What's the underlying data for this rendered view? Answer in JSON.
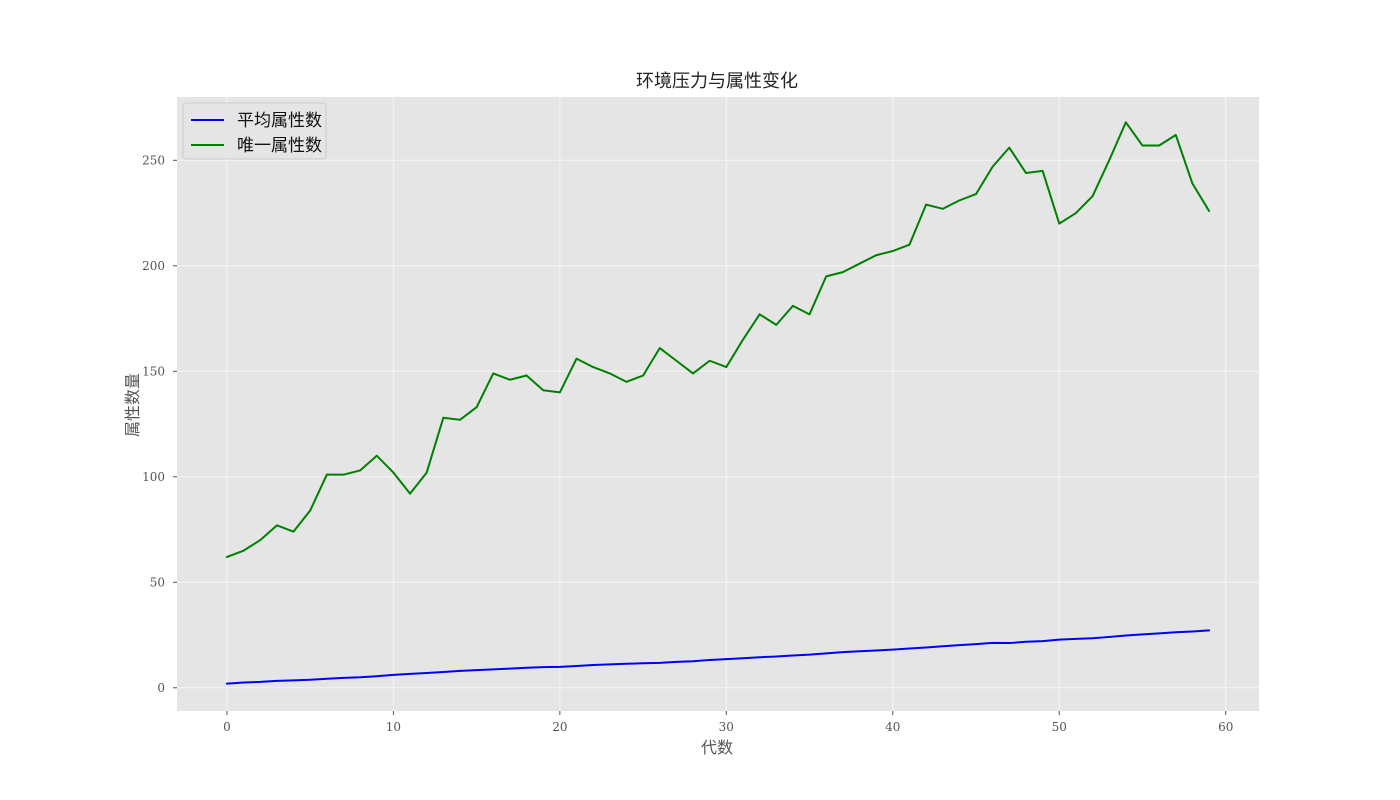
{
  "chart_data": {
    "type": "line",
    "title": "环境压力与属性变化",
    "xlabel": "代数",
    "ylabel": "属性数量",
    "xlim": [
      -3,
      62
    ],
    "ylim": [
      -11,
      280
    ],
    "xticks": [
      0,
      10,
      20,
      30,
      40,
      50,
      60
    ],
    "yticks": [
      0,
      50,
      100,
      150,
      200,
      250
    ],
    "grid": true,
    "legend_position": "top-left",
    "x": [
      0,
      1,
      2,
      3,
      4,
      5,
      6,
      7,
      8,
      9,
      10,
      11,
      12,
      13,
      14,
      15,
      16,
      17,
      18,
      19,
      20,
      21,
      22,
      23,
      24,
      25,
      26,
      27,
      28,
      29,
      30,
      31,
      32,
      33,
      34,
      35,
      36,
      37,
      38,
      39,
      40,
      41,
      42,
      43,
      44,
      45,
      46,
      47,
      48,
      49,
      50,
      51,
      52,
      53,
      54,
      55,
      56,
      57,
      58,
      59
    ],
    "series": [
      {
        "name": "平均属性数",
        "color": "#0000ff",
        "values": [
          2.0,
          2.5,
          2.8,
          3.3,
          3.5,
          3.8,
          4.3,
          4.7,
          5.0,
          5.5,
          6.1,
          6.6,
          7.0,
          7.5,
          8.0,
          8.4,
          8.7,
          9.1,
          9.5,
          9.8,
          9.9,
          10.3,
          10.8,
          11.1,
          11.4,
          11.6,
          11.8,
          12.3,
          12.6,
          13.2,
          13.6,
          14.0,
          14.5,
          14.8,
          15.3,
          15.7,
          16.3,
          16.9,
          17.3,
          17.7,
          18.1,
          18.6,
          19.1,
          19.7,
          20.2,
          20.7,
          21.3,
          21.2,
          21.8,
          22.1,
          22.8,
          23.2,
          23.5,
          24.1,
          24.8,
          25.3,
          25.8,
          26.3,
          26.7,
          27.2
        ]
      },
      {
        "name": "唯一属性数",
        "color": "#008000",
        "values": [
          62,
          65,
          70,
          77,
          74,
          84,
          101,
          101,
          103,
          110,
          102,
          92,
          102,
          128,
          127,
          133,
          149,
          146,
          148,
          141,
          140,
          156,
          152,
          149,
          145,
          148,
          161,
          155,
          149,
          155,
          152,
          165,
          177,
          172,
          181,
          177,
          195,
          197,
          201,
          205,
          207,
          210,
          229,
          227,
          231,
          234,
          247,
          256,
          244,
          245,
          220,
          225,
          233,
          250,
          268,
          257,
          257,
          262,
          239,
          226
        ]
      }
    ]
  }
}
